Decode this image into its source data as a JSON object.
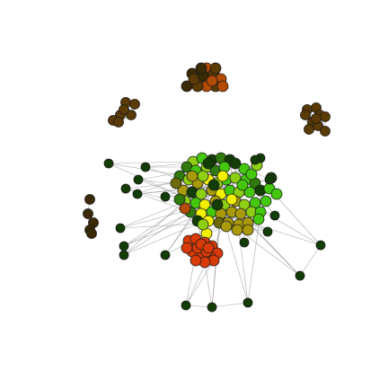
{
  "canvas": {
    "background": "#ffffff"
  },
  "palette": {
    "dark_green": "#123d05",
    "mid_green": "#2f7a0a",
    "bright_green": "#44c80e",
    "lime": "#8ecf13",
    "olive": "#a89a0a",
    "olive_dark": "#6c6a08",
    "yellow": "#f2f000",
    "orange_red": "#d83a08",
    "rust": "#b34a06",
    "brown": "#5a3a05",
    "brown_dark": "#3a2a05",
    "edge_gray": "#9a9a9a"
  },
  "graph": {
    "description_free": true,
    "clusters": [
      {
        "id": "central-green-yellow-cluster"
      },
      {
        "id": "orange-red-cluster"
      },
      {
        "id": "top-brown-cluster"
      },
      {
        "id": "upper-left-brown-cluster"
      },
      {
        "id": "right-brown-cluster"
      },
      {
        "id": "left-dark-cluster"
      },
      {
        "id": "peripheral-nodes"
      }
    ]
  }
}
